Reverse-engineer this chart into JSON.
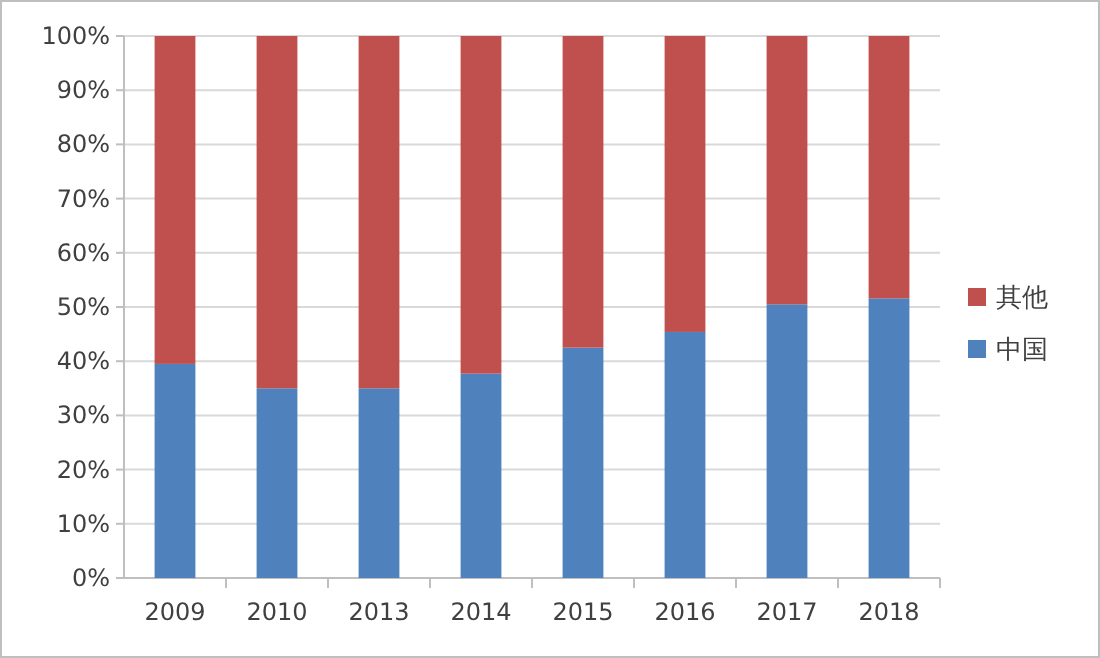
{
  "chart_data": {
    "type": "bar",
    "stacked": true,
    "categories": [
      "2009",
      "2010",
      "2013",
      "2014",
      "2015",
      "2016",
      "2017",
      "2018"
    ],
    "series": [
      {
        "name": "中国",
        "color": "#4f81bd",
        "values": [
          39.5,
          35,
          35,
          37.7,
          42.5,
          45.4,
          50.5,
          51.6
        ]
      },
      {
        "name": "其他",
        "color": "#c0504d",
        "values": [
          60.5,
          65,
          65,
          62.3,
          57.5,
          54.6,
          49.5,
          48.4
        ]
      }
    ],
    "ylim": [
      0,
      100
    ],
    "yticks": [
      {
        "value": 0,
        "label": "0%"
      },
      {
        "value": 10,
        "label": "10%"
      },
      {
        "value": 20,
        "label": "20%"
      },
      {
        "value": 30,
        "label": "30%"
      },
      {
        "value": 40,
        "label": "40%"
      },
      {
        "value": 50,
        "label": "50%"
      },
      {
        "value": 60,
        "label": "60%"
      },
      {
        "value": 70,
        "label": "70%"
      },
      {
        "value": 80,
        "label": "80%"
      },
      {
        "value": 90,
        "label": "90%"
      },
      {
        "value": 100,
        "label": "100%"
      }
    ],
    "grid": "y",
    "legend": "right"
  }
}
